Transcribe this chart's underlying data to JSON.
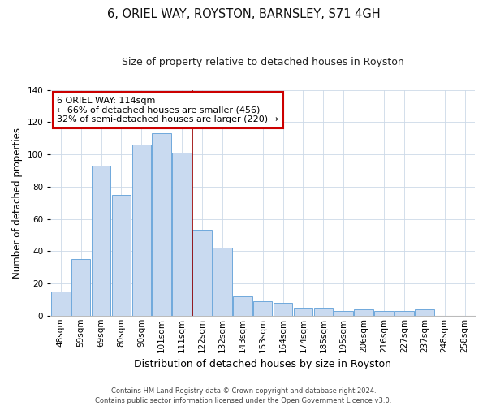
{
  "title": "6, ORIEL WAY, ROYSTON, BARNSLEY, S71 4GH",
  "subtitle": "Size of property relative to detached houses in Royston",
  "xlabel": "Distribution of detached houses by size in Royston",
  "ylabel": "Number of detached properties",
  "bar_labels": [
    "48sqm",
    "59sqm",
    "69sqm",
    "80sqm",
    "90sqm",
    "101sqm",
    "111sqm",
    "122sqm",
    "132sqm",
    "143sqm",
    "153sqm",
    "164sqm",
    "174sqm",
    "185sqm",
    "195sqm",
    "206sqm",
    "216sqm",
    "227sqm",
    "237sqm",
    "248sqm",
    "258sqm"
  ],
  "bar_values": [
    15,
    35,
    93,
    75,
    106,
    113,
    101,
    53,
    42,
    12,
    9,
    8,
    5,
    5,
    3,
    4,
    3,
    3,
    4,
    0,
    0
  ],
  "bar_color": "#c9daf0",
  "bar_edge_color": "#6fa8dc",
  "vline_color": "#990000",
  "vline_x": 6.5,
  "ylim": [
    0,
    140
  ],
  "yticks": [
    0,
    20,
    40,
    60,
    80,
    100,
    120,
    140
  ],
  "annotation_title": "6 ORIEL WAY: 114sqm",
  "annotation_line1": "← 66% of detached houses are smaller (456)",
  "annotation_line2": "32% of semi-detached houses are larger (220) →",
  "annotation_box_facecolor": "#ffffff",
  "annotation_box_edgecolor": "#cc0000",
  "footer_line1": "Contains HM Land Registry data © Crown copyright and database right 2024.",
  "footer_line2": "Contains public sector information licensed under the Open Government Licence v3.0.",
  "background_color": "#ffffff",
  "grid_color": "#ccd9e8",
  "title_fontsize": 10.5,
  "subtitle_fontsize": 9,
  "ylabel_fontsize": 8.5,
  "xlabel_fontsize": 9,
  "tick_fontsize": 7.5,
  "annotation_fontsize": 8,
  "footer_fontsize": 6
}
